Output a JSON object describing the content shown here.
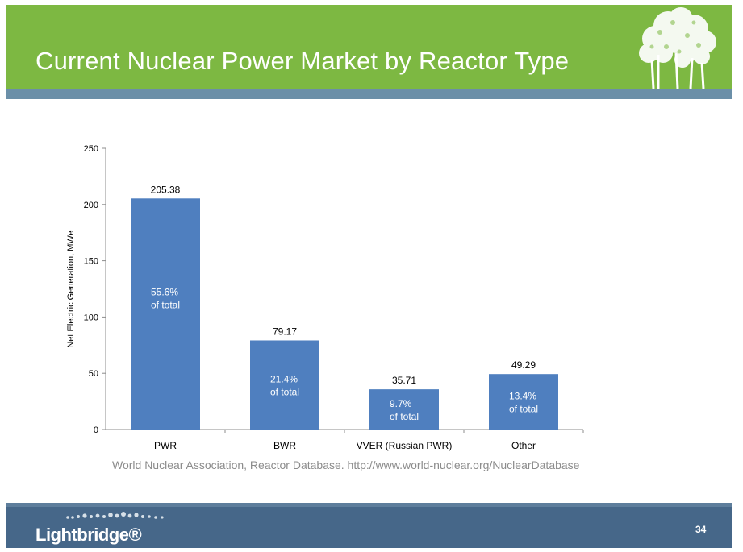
{
  "slide": {
    "title": "Current Nuclear Power Market by Reactor Type",
    "source": "World Nuclear Association, Reactor Database. http://www.world-nuclear.org/NuclearDatabase",
    "brand": "Lightbridge®",
    "page_number": "34"
  },
  "colors": {
    "header_green": "#7db842",
    "header_stripe": "#6b8fa8",
    "bar": "#4f7fbf",
    "footer": "#466789"
  },
  "chart_data": {
    "type": "bar",
    "title": "",
    "xlabel": "",
    "ylabel": "Net Electric Generation, MWe",
    "ylim": [
      0,
      250
    ],
    "yticks": [
      0,
      50,
      100,
      150,
      200,
      250
    ],
    "grid": false,
    "categories": [
      "PWR",
      "BWR",
      "VVER (Russian PWR)",
      "Other"
    ],
    "values": [
      205.38,
      79.17,
      35.71,
      49.29
    ],
    "value_labels": [
      "205.38",
      "79.17",
      "35.71",
      "49.29"
    ],
    "share_labels": [
      [
        "55.6%",
        "of total"
      ],
      [
        "21.4%",
        "of total"
      ],
      [
        "9.7%",
        " of total"
      ],
      [
        "13.4%",
        "of total"
      ]
    ]
  }
}
